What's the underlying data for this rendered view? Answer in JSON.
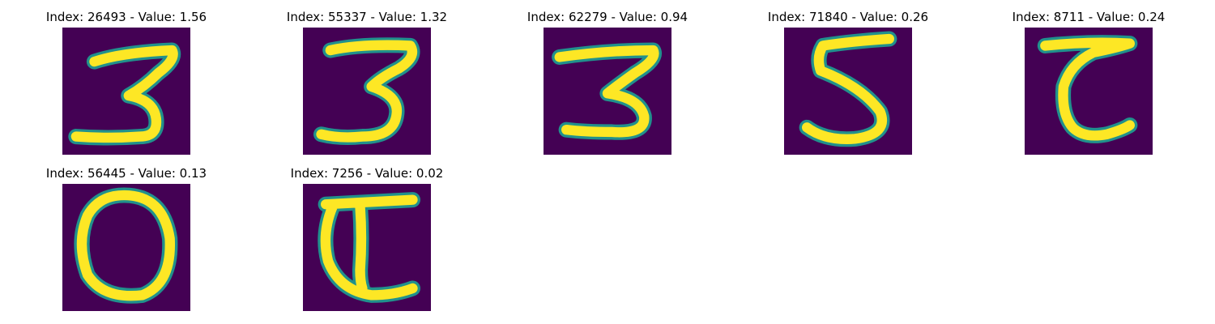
{
  "colors": {
    "background": "#440154",
    "stroke_mid": "#21918c",
    "stroke_core": "#fde725",
    "title_text": "#000000"
  },
  "panels": [
    {
      "title": "Index: 26493 - Value: 1.56",
      "digit": "3"
    },
    {
      "title": "Index: 55337 - Value: 1.32",
      "digit": "3"
    },
    {
      "title": "Index: 62279 - Value: 0.94",
      "digit": "3"
    },
    {
      "title": "Index: 71840 - Value: 0.26",
      "digit": "5"
    },
    {
      "title": "Index: 8711 - Value: 0.24",
      "digit": "7"
    },
    {
      "title": "Index: 56445 - Value: 0.13",
      "digit": "0"
    },
    {
      "title": "Index: 7256 - Value: 0.02",
      "digit": "7"
    }
  ]
}
